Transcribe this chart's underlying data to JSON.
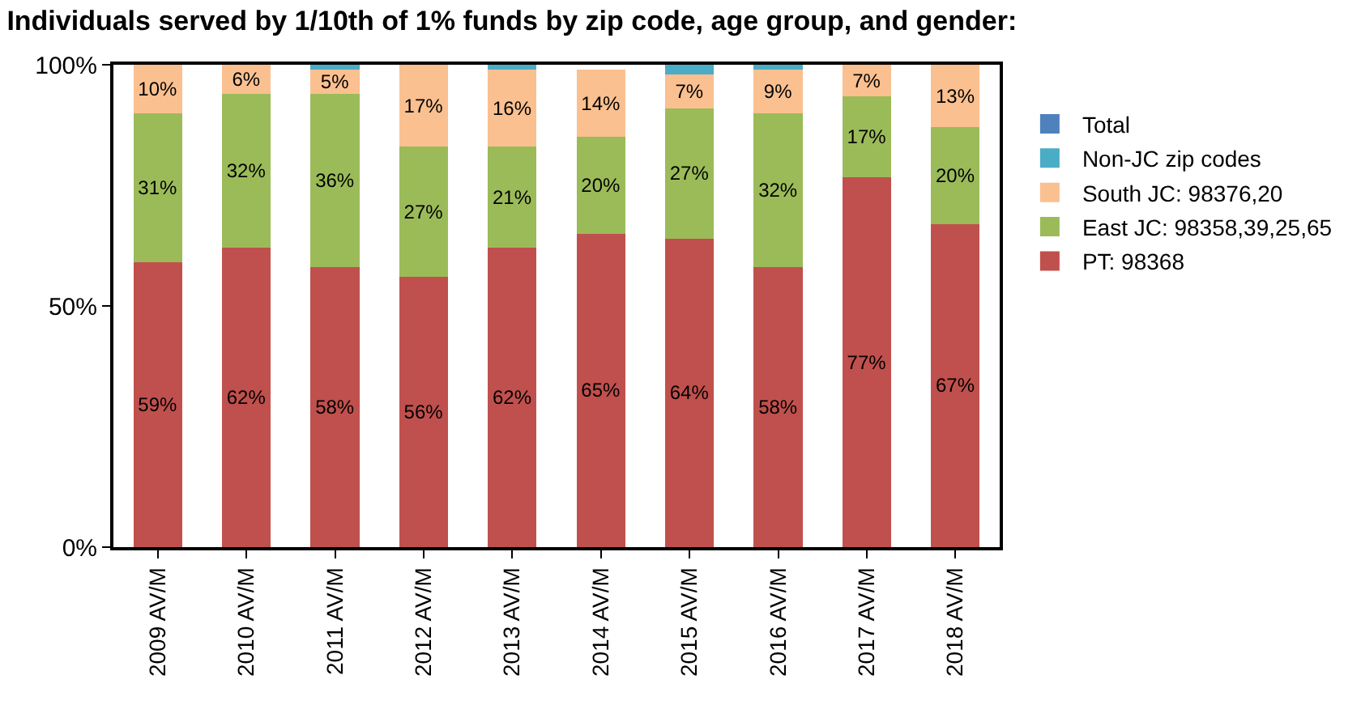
{
  "chart_data": {
    "type": "bar",
    "stacked": true,
    "title": "Individuals served by 1/10th of 1% funds by zip code, age group, and gender:",
    "categories": [
      "2009 AV/M",
      "2010 AV/M",
      "2011 AV/M",
      "2012 AV/M",
      "2013 AV/M",
      "2014 AV/M",
      "2015 AV/M",
      "2016 AV/M",
      "2017 AV/M",
      "2018 AV/M"
    ],
    "series": [
      {
        "name": "PT: 98368",
        "color": "#c0504d",
        "values": [
          59,
          62,
          58,
          56,
          62,
          65,
          64,
          58,
          76.6,
          67
        ],
        "value_labels": [
          "59%",
          "62%",
          "58%",
          "56%",
          "62%",
          "65%",
          "64%",
          "58%",
          "77%",
          "67%"
        ]
      },
      {
        "name": "East JC: 98358,39,25,65",
        "color": "#9bbb59",
        "values": [
          31,
          32,
          36,
          27,
          21,
          20,
          27,
          32,
          16.8,
          20
        ],
        "value_labels": [
          "31%",
          "32%",
          "36%",
          "27%",
          "21%",
          "20%",
          "27%",
          "32%",
          "17%",
          "20%"
        ]
      },
      {
        "name": "South JC: 98376,20",
        "color": "#fac090",
        "values": [
          10,
          6,
          5,
          17,
          16,
          14,
          7,
          9,
          6.6,
          13
        ],
        "value_labels": [
          "10%",
          "6%",
          "5%",
          "17%",
          "16%",
          "14%",
          "7%",
          "9%",
          "7%",
          "13%"
        ]
      },
      {
        "name": "Non-JC zip codes",
        "color": "#4bacc6",
        "values": [
          0,
          0,
          1,
          0,
          1,
          0,
          2,
          1,
          0,
          0
        ]
      },
      {
        "name": "Total",
        "color": "#4f81bd",
        "values": [
          null,
          null,
          null,
          null,
          null,
          null,
          null,
          null,
          null,
          null
        ]
      }
    ],
    "ylim": [
      0,
      100
    ],
    "yticks": [
      {
        "value": 0,
        "label": "0%"
      },
      {
        "value": 50,
        "label": "50%"
      },
      {
        "value": 100,
        "label": "100%"
      }
    ],
    "grid": false,
    "legend": "right"
  }
}
